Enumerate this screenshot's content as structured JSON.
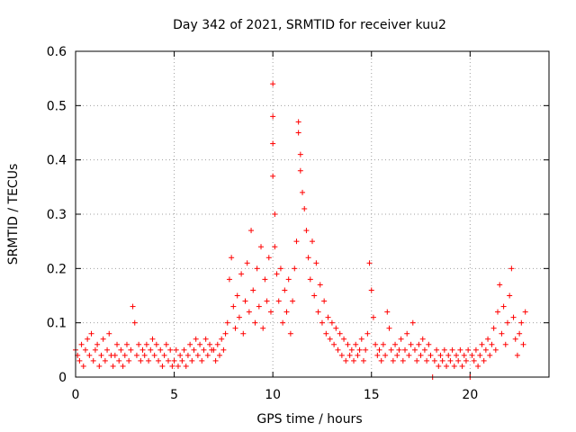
{
  "chart_data": {
    "type": "scatter",
    "title": "Day 342 of 2021, SRMTID for receiver kuu2",
    "xlabel": "GPS time / hours",
    "ylabel": "SRMTID / TECUs",
    "xlim": [
      0,
      24
    ],
    "ylim": [
      0,
      0.6
    ],
    "x_ticks": [
      0,
      5,
      10,
      15,
      20
    ],
    "y_ticks": [
      0,
      0.1,
      0.2,
      0.3,
      0.4,
      0.5,
      0.6
    ],
    "x_tick_labels": [
      "0",
      "5",
      "10",
      "15",
      "20"
    ],
    "y_tick_labels": [
      "0",
      "0.1",
      "0.2",
      "0.3",
      "0.4",
      "0.5",
      "0.6"
    ],
    "grid": true,
    "marker": "+",
    "marker_color": "#ff0000",
    "series": [
      {
        "name": "SRMTID",
        "points": [
          [
            0.0,
            0.05
          ],
          [
            0.1,
            0.04
          ],
          [
            0.2,
            0.03
          ],
          [
            0.3,
            0.06
          ],
          [
            0.4,
            0.02
          ],
          [
            0.5,
            0.05
          ],
          [
            0.6,
            0.07
          ],
          [
            0.7,
            0.04
          ],
          [
            0.8,
            0.08
          ],
          [
            0.9,
            0.03
          ],
          [
            1.0,
            0.05
          ],
          [
            1.1,
            0.06
          ],
          [
            1.2,
            0.02
          ],
          [
            1.3,
            0.04
          ],
          [
            1.4,
            0.07
          ],
          [
            1.5,
            0.03
          ],
          [
            1.6,
            0.05
          ],
          [
            1.7,
            0.08
          ],
          [
            1.8,
            0.04
          ],
          [
            1.9,
            0.02
          ],
          [
            2.0,
            0.04
          ],
          [
            2.1,
            0.06
          ],
          [
            2.2,
            0.03
          ],
          [
            2.3,
            0.05
          ],
          [
            2.4,
            0.02
          ],
          [
            2.5,
            0.04
          ],
          [
            2.6,
            0.06
          ],
          [
            2.7,
            0.03
          ],
          [
            2.8,
            0.05
          ],
          [
            2.9,
            0.13
          ],
          [
            3.0,
            0.1
          ],
          [
            3.1,
            0.04
          ],
          [
            3.2,
            0.06
          ],
          [
            3.3,
            0.03
          ],
          [
            3.4,
            0.05
          ],
          [
            3.5,
            0.04
          ],
          [
            3.6,
            0.06
          ],
          [
            3.7,
            0.03
          ],
          [
            3.8,
            0.05
          ],
          [
            3.9,
            0.07
          ],
          [
            4.0,
            0.04
          ],
          [
            4.1,
            0.06
          ],
          [
            4.2,
            0.03
          ],
          [
            4.3,
            0.05
          ],
          [
            4.4,
            0.02
          ],
          [
            4.5,
            0.04
          ],
          [
            4.6,
            0.06
          ],
          [
            4.7,
            0.03
          ],
          [
            4.8,
            0.05
          ],
          [
            4.9,
            0.02
          ],
          [
            5.0,
            0.03
          ],
          [
            5.1,
            0.05
          ],
          [
            5.2,
            0.02
          ],
          [
            5.3,
            0.04
          ],
          [
            5.4,
            0.03
          ],
          [
            5.5,
            0.05
          ],
          [
            5.6,
            0.02
          ],
          [
            5.7,
            0.04
          ],
          [
            5.8,
            0.06
          ],
          [
            5.9,
            0.03
          ],
          [
            6.0,
            0.05
          ],
          [
            6.1,
            0.07
          ],
          [
            6.2,
            0.04
          ],
          [
            6.3,
            0.06
          ],
          [
            6.4,
            0.03
          ],
          [
            6.5,
            0.05
          ],
          [
            6.6,
            0.07
          ],
          [
            6.7,
            0.04
          ],
          [
            6.8,
            0.06
          ],
          [
            6.9,
            0.05
          ],
          [
            7.0,
            0.05
          ],
          [
            7.1,
            0.03
          ],
          [
            7.2,
            0.06
          ],
          [
            7.3,
            0.04
          ],
          [
            7.4,
            0.07
          ],
          [
            7.5,
            0.05
          ],
          [
            7.6,
            0.08
          ],
          [
            7.7,
            0.1
          ],
          [
            7.8,
            0.18
          ],
          [
            7.9,
            0.22
          ],
          [
            8.0,
            0.13
          ],
          [
            8.1,
            0.09
          ],
          [
            8.2,
            0.15
          ],
          [
            8.3,
            0.11
          ],
          [
            8.4,
            0.19
          ],
          [
            8.5,
            0.08
          ],
          [
            8.6,
            0.14
          ],
          [
            8.7,
            0.21
          ],
          [
            8.8,
            0.12
          ],
          [
            8.9,
            0.27
          ],
          [
            9.0,
            0.16
          ],
          [
            9.1,
            0.1
          ],
          [
            9.2,
            0.2
          ],
          [
            9.3,
            0.13
          ],
          [
            9.4,
            0.24
          ],
          [
            9.5,
            0.09
          ],
          [
            9.6,
            0.18
          ],
          [
            9.7,
            0.14
          ],
          [
            9.8,
            0.22
          ],
          [
            9.9,
            0.12
          ],
          [
            10.0,
            0.54
          ],
          [
            10.0,
            0.48
          ],
          [
            10.0,
            0.43
          ],
          [
            10.0,
            0.37
          ],
          [
            10.1,
            0.3
          ],
          [
            10.1,
            0.24
          ],
          [
            10.2,
            0.19
          ],
          [
            10.3,
            0.14
          ],
          [
            10.4,
            0.2
          ],
          [
            10.5,
            0.1
          ],
          [
            10.6,
            0.16
          ],
          [
            10.7,
            0.12
          ],
          [
            10.8,
            0.18
          ],
          [
            10.9,
            0.08
          ],
          [
            11.0,
            0.14
          ],
          [
            11.1,
            0.2
          ],
          [
            11.2,
            0.25
          ],
          [
            11.3,
            0.47
          ],
          [
            11.3,
            0.45
          ],
          [
            11.4,
            0.41
          ],
          [
            11.4,
            0.38
          ],
          [
            11.5,
            0.34
          ],
          [
            11.6,
            0.31
          ],
          [
            11.7,
            0.27
          ],
          [
            11.8,
            0.22
          ],
          [
            11.9,
            0.18
          ],
          [
            12.0,
            0.25
          ],
          [
            12.1,
            0.15
          ],
          [
            12.2,
            0.21
          ],
          [
            12.3,
            0.12
          ],
          [
            12.4,
            0.17
          ],
          [
            12.5,
            0.1
          ],
          [
            12.6,
            0.14
          ],
          [
            12.7,
            0.08
          ],
          [
            12.8,
            0.11
          ],
          [
            12.9,
            0.07
          ],
          [
            13.0,
            0.1
          ],
          [
            13.1,
            0.06
          ],
          [
            13.2,
            0.09
          ],
          [
            13.3,
            0.05
          ],
          [
            13.4,
            0.08
          ],
          [
            13.5,
            0.04
          ],
          [
            13.6,
            0.07
          ],
          [
            13.7,
            0.03
          ],
          [
            13.8,
            0.06
          ],
          [
            13.9,
            0.04
          ],
          [
            14.0,
            0.05
          ],
          [
            14.1,
            0.03
          ],
          [
            14.2,
            0.06
          ],
          [
            14.3,
            0.04
          ],
          [
            14.4,
            0.05
          ],
          [
            14.5,
            0.07
          ],
          [
            14.6,
            0.03
          ],
          [
            14.7,
            0.05
          ],
          [
            14.8,
            0.08
          ],
          [
            14.9,
            0.21
          ],
          [
            15.0,
            0.16
          ],
          [
            15.1,
            0.11
          ],
          [
            15.2,
            0.06
          ],
          [
            15.3,
            0.04
          ],
          [
            15.4,
            0.05
          ],
          [
            15.5,
            0.03
          ],
          [
            15.6,
            0.06
          ],
          [
            15.7,
            0.04
          ],
          [
            15.8,
            0.12
          ],
          [
            15.9,
            0.09
          ],
          [
            16.0,
            0.05
          ],
          [
            16.1,
            0.03
          ],
          [
            16.2,
            0.06
          ],
          [
            16.3,
            0.04
          ],
          [
            16.4,
            0.05
          ],
          [
            16.5,
            0.07
          ],
          [
            16.6,
            0.03
          ],
          [
            16.7,
            0.05
          ],
          [
            16.8,
            0.08
          ],
          [
            16.9,
            0.04
          ],
          [
            17.0,
            0.06
          ],
          [
            17.1,
            0.1
          ],
          [
            17.2,
            0.05
          ],
          [
            17.3,
            0.03
          ],
          [
            17.4,
            0.06
          ],
          [
            17.5,
            0.04
          ],
          [
            17.6,
            0.07
          ],
          [
            17.7,
            0.05
          ],
          [
            17.8,
            0.03
          ],
          [
            17.9,
            0.06
          ],
          [
            18.0,
            0.04
          ],
          [
            18.1,
            0.0
          ],
          [
            18.2,
            0.03
          ],
          [
            18.3,
            0.05
          ],
          [
            18.4,
            0.02
          ],
          [
            18.5,
            0.04
          ],
          [
            18.6,
            0.03
          ],
          [
            18.7,
            0.05
          ],
          [
            18.8,
            0.02
          ],
          [
            18.9,
            0.04
          ],
          [
            19.0,
            0.03
          ],
          [
            19.1,
            0.05
          ],
          [
            19.2,
            0.02
          ],
          [
            19.3,
            0.04
          ],
          [
            19.4,
            0.03
          ],
          [
            19.5,
            0.05
          ],
          [
            19.6,
            0.02
          ],
          [
            19.7,
            0.04
          ],
          [
            19.8,
            0.03
          ],
          [
            19.9,
            0.05
          ],
          [
            20.0,
            0.0
          ],
          [
            20.1,
            0.04
          ],
          [
            20.2,
            0.03
          ],
          [
            20.3,
            0.05
          ],
          [
            20.4,
            0.02
          ],
          [
            20.5,
            0.04
          ],
          [
            20.6,
            0.06
          ],
          [
            20.7,
            0.03
          ],
          [
            20.8,
            0.05
          ],
          [
            20.9,
            0.07
          ],
          [
            21.0,
            0.04
          ],
          [
            21.1,
            0.06
          ],
          [
            21.2,
            0.09
          ],
          [
            21.3,
            0.05
          ],
          [
            21.4,
            0.12
          ],
          [
            21.5,
            0.17
          ],
          [
            21.6,
            0.08
          ],
          [
            21.7,
            0.13
          ],
          [
            21.8,
            0.06
          ],
          [
            21.9,
            0.1
          ],
          [
            22.0,
            0.15
          ],
          [
            22.1,
            0.2
          ],
          [
            22.2,
            0.11
          ],
          [
            22.3,
            0.07
          ],
          [
            22.4,
            0.04
          ],
          [
            22.5,
            0.08
          ],
          [
            22.6,
            0.1
          ],
          [
            22.7,
            0.06
          ],
          [
            22.8,
            0.12
          ]
        ]
      }
    ]
  }
}
